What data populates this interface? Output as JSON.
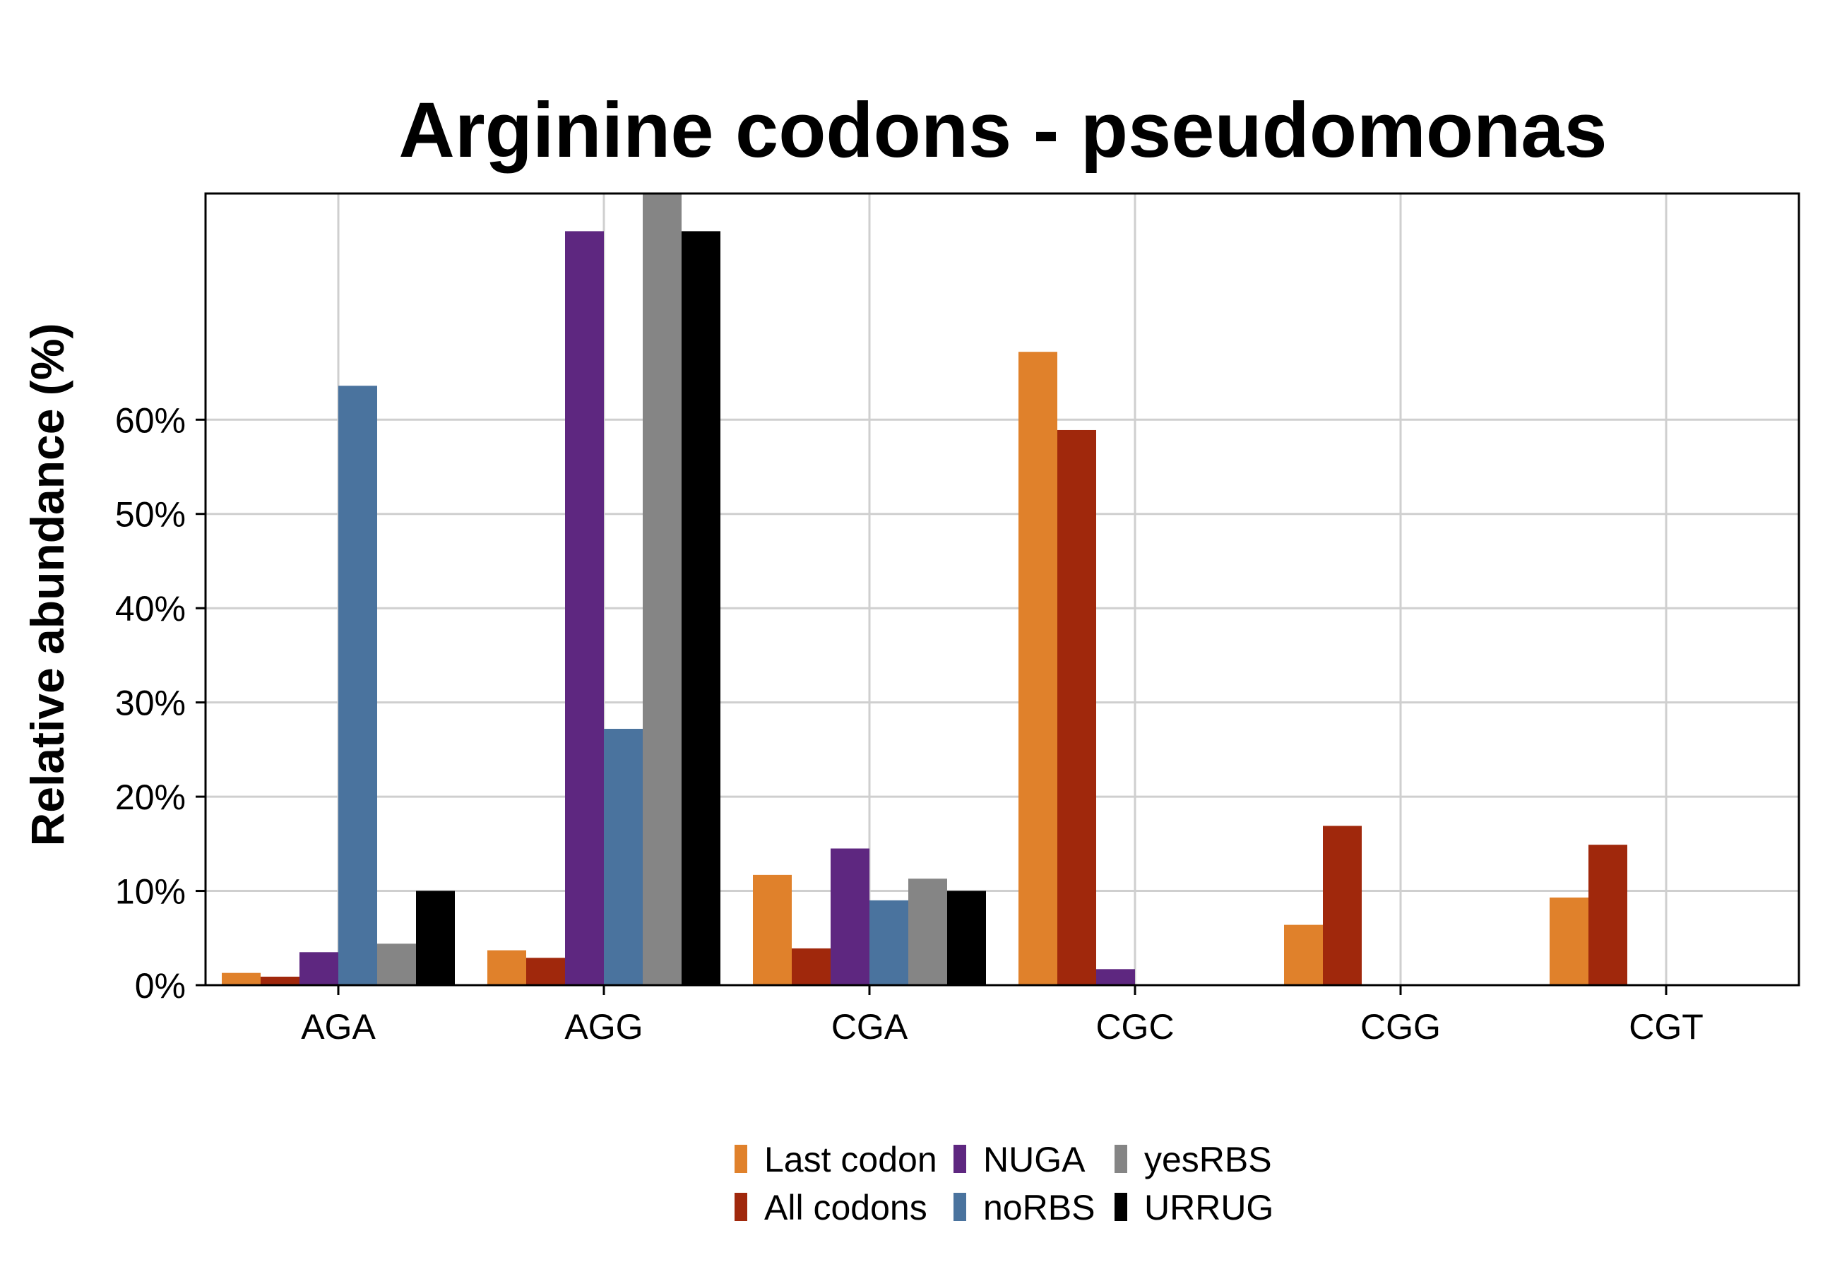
{
  "chart_data": {
    "type": "bar",
    "title": "Arginine codons - pseudomonas",
    "xlabel": "",
    "ylabel": "Relative abundance (%)",
    "categories": [
      "AGA",
      "AGG",
      "CGA",
      "CGC",
      "CGG",
      "CGT"
    ],
    "ylim": [
      0,
      84
    ],
    "yticks": [
      0,
      10,
      20,
      30,
      40,
      50,
      60
    ],
    "ytick_labels": [
      "0%",
      "10%",
      "20%",
      "30%",
      "40%",
      "50%",
      "60%"
    ],
    "grid": true,
    "legend_position": "bottom",
    "series": [
      {
        "name": "Last codon",
        "color": "#E0812B",
        "values": [
          1.3,
          3.7,
          11.7,
          67.2,
          6.4,
          9.3
        ]
      },
      {
        "name": "All codons",
        "color": "#A0280C",
        "values": [
          0.9,
          2.9,
          3.9,
          58.9,
          16.9,
          14.9
        ]
      },
      {
        "name": "NUGA",
        "color": "#5E2780",
        "values": [
          3.5,
          80.0,
          14.5,
          1.7,
          0,
          0
        ]
      },
      {
        "name": "noRBS",
        "color": "#4A739E",
        "values": [
          63.6,
          27.2,
          9.0,
          0,
          0,
          0
        ]
      },
      {
        "name": "yesRBS",
        "color": "#858585",
        "values": [
          4.4,
          84.0,
          11.3,
          0,
          0,
          0
        ]
      },
      {
        "name": "URRUG",
        "color": "#000000",
        "values": [
          10.0,
          80.0,
          10.0,
          0,
          0,
          0
        ]
      }
    ]
  }
}
